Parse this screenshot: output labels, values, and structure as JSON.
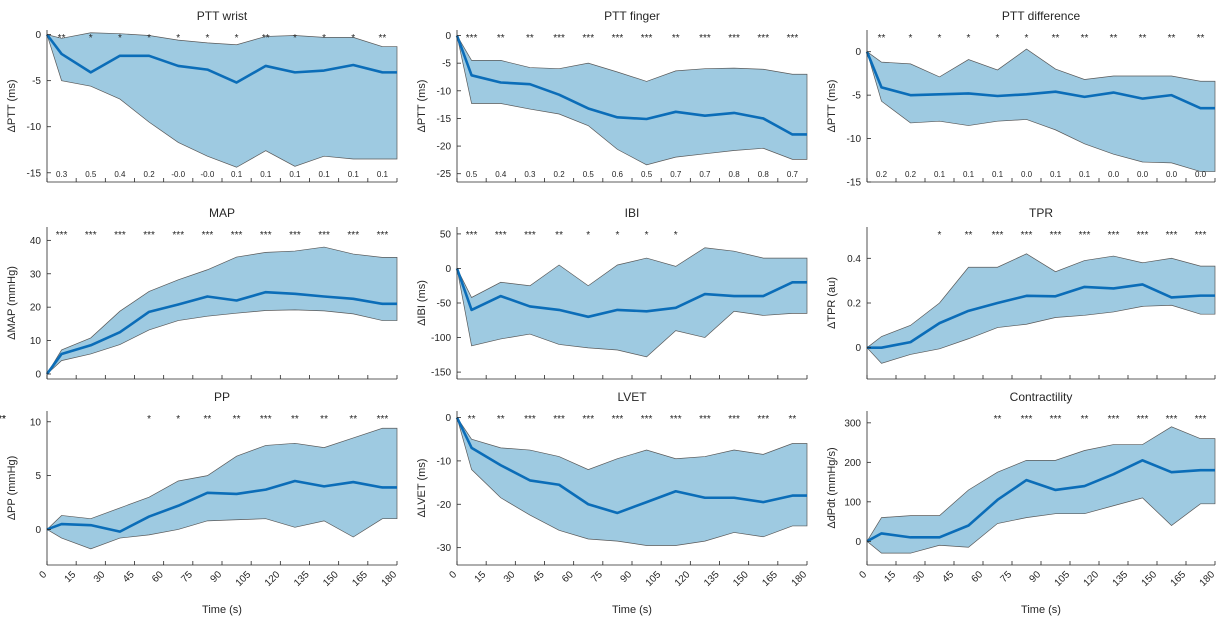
{
  "colors": {
    "band": "#9ecae1",
    "band_edge": "#595959",
    "line": "#0b6db8",
    "axis": "#262626"
  },
  "chart_data": [
    {
      "type": "area",
      "title": "PTT wrist",
      "ylabel": "ΔPTT (ms)",
      "xlabel": "",
      "x": [
        0,
        7.5,
        22.5,
        37.5,
        52.5,
        67.5,
        82.5,
        97.5,
        112.5,
        127.5,
        142.5,
        157.5,
        172.5,
        180
      ],
      "xlim": [
        0,
        180
      ],
      "ylim": [
        -16,
        0.5
      ],
      "yticks": [
        0,
        -5,
        -10,
        -15
      ],
      "series": [
        {
          "mean": [
            0,
            -2.1,
            -4.1,
            -2.3,
            -2.3,
            -3.4,
            -3.8,
            -5.2,
            -3.4,
            -4.1,
            -3.9,
            -3.3,
            -4.1,
            -4.1
          ],
          "upper": [
            0,
            -0.4,
            0.2,
            0.1,
            -0.1,
            -0.6,
            -0.9,
            -1.1,
            -0.2,
            -0.1,
            -0.3,
            -0.3,
            -1.3,
            -1.3
          ],
          "lower": [
            0,
            -5.0,
            -5.6,
            -7.0,
            -9.5,
            -11.7,
            -13.2,
            -14.4,
            -12.6,
            -14.3,
            -13.2,
            -13.5,
            -13.5,
            -13.5
          ]
        }
      ],
      "stars": [
        "**",
        "*",
        "*",
        "*",
        "*",
        "*",
        "*",
        "**",
        "*",
        "*",
        "*",
        "**"
      ],
      "stars_x": [
        22.5,
        37.5,
        52.5,
        67.5,
        82.5,
        97.5,
        112.5,
        127.5,
        142.5,
        157.5,
        172.5
      ],
      "stars_x_full": [
        7.5,
        37.5,
        52.5,
        67.5,
        82.5,
        97.5,
        112.5,
        127.5,
        142.5,
        157.5,
        172.5,
        172.5
      ],
      "annotations": [
        "0.3",
        "0.5",
        "0.4",
        "0.2",
        "-0.0",
        "-0.0",
        "0.1",
        "0.1",
        "0.1",
        "0.1",
        "0.1",
        "0.1"
      ]
    },
    {
      "type": "area",
      "title": "PTT finger",
      "ylabel": "ΔPTT (ms)",
      "xlabel": "",
      "x": [
        0,
        7.5,
        22.5,
        37.5,
        52.5,
        67.5,
        82.5,
        97.5,
        112.5,
        127.5,
        142.5,
        157.5,
        172.5,
        180
      ],
      "xlim": [
        0,
        180
      ],
      "ylim": [
        -26.5,
        1
      ],
      "yticks": [
        0,
        -5,
        -10,
        -15,
        -20,
        -25
      ],
      "series": [
        {
          "mean": [
            0,
            -7.2,
            -8.5,
            -8.8,
            -10.7,
            -13.2,
            -14.8,
            -15.1,
            -13.8,
            -14.5,
            -14.0,
            -15.0,
            -17.9,
            -17.9
          ],
          "upper": [
            0,
            -4.5,
            -4.5,
            -5.8,
            -6.0,
            -5.0,
            -6.6,
            -8.3,
            -6.4,
            -6.0,
            -5.9,
            -6.1,
            -7.0,
            -7.0
          ],
          "lower": [
            0,
            -12.3,
            -12.3,
            -13.3,
            -14.2,
            -16.3,
            -20.6,
            -23.4,
            -22.0,
            -21.4,
            -20.8,
            -20.4,
            -22.4,
            -22.4
          ]
        }
      ],
      "stars": [
        "***",
        "**",
        "**",
        "***",
        "***",
        "***",
        "***",
        "**",
        "***",
        "***",
        "***",
        "***"
      ],
      "annotations": [
        "0.5",
        "0.4",
        "0.3",
        "0.2",
        "0.5",
        "0.6",
        "0.5",
        "0.7",
        "0.7",
        "0.8",
        "0.8",
        "0.7"
      ]
    },
    {
      "type": "area",
      "title": "PTT difference",
      "ylabel": "ΔPTT (ms)",
      "xlabel": "",
      "x": [
        0,
        7.5,
        22.5,
        37.5,
        52.5,
        67.5,
        82.5,
        97.5,
        112.5,
        127.5,
        142.5,
        157.5,
        172.5,
        180
      ],
      "xlim": [
        0,
        180
      ],
      "ylim": [
        -15,
        2.5
      ],
      "yticks": [
        0,
        -5,
        -10,
        -15
      ],
      "series": [
        {
          "mean": [
            0,
            -4.1,
            -5.0,
            -4.9,
            -4.8,
            -5.1,
            -4.9,
            -4.6,
            -5.2,
            -4.7,
            -5.4,
            -5.0,
            -6.5,
            -6.5
          ],
          "upper": [
            0,
            -1.2,
            -1.4,
            -2.9,
            -0.9,
            -2.1,
            0.3,
            -2.0,
            -3.2,
            -2.8,
            -2.8,
            -2.8,
            -3.4,
            -3.4
          ],
          "lower": [
            0,
            -5.7,
            -8.2,
            -8.0,
            -8.5,
            -8.0,
            -7.8,
            -9.0,
            -10.6,
            -11.8,
            -12.7,
            -12.8,
            -13.8,
            -13.8
          ]
        }
      ],
      "stars": [
        "**",
        "*",
        "*",
        "*",
        "*",
        "*",
        "**",
        "**",
        "**",
        "**",
        "**",
        "**"
      ],
      "annotations": [
        "0.2",
        "0.2",
        "0.1",
        "0.1",
        "0.1",
        "0.0",
        "0.1",
        "0.1",
        "0.0",
        "0.0",
        "0.0",
        "0.0"
      ]
    },
    {
      "type": "area",
      "title": "MAP",
      "ylabel": "ΔMAP (mmHg)",
      "xlabel": "",
      "x": [
        0,
        7.5,
        22.5,
        37.5,
        52.5,
        67.5,
        82.5,
        97.5,
        112.5,
        127.5,
        142.5,
        157.5,
        172.5,
        180
      ],
      "xlim": [
        0,
        180
      ],
      "ylim": [
        -1.5,
        44
      ],
      "yticks": [
        0,
        10,
        20,
        30,
        40
      ],
      "series": [
        {
          "mean": [
            0,
            6.0,
            8.6,
            12.5,
            18.6,
            20.8,
            23.2,
            22.0,
            24.5,
            24.0,
            23.2,
            22.5,
            21.0,
            21.0
          ],
          "upper": [
            0,
            7.2,
            10.8,
            18.8,
            24.7,
            28.2,
            31.2,
            35.0,
            36.4,
            36.8,
            38.0,
            35.9,
            34.9,
            34.9
          ],
          "lower": [
            0,
            4.0,
            6.0,
            8.8,
            13.2,
            16.0,
            17.3,
            18.2,
            19.0,
            19.2,
            18.9,
            18.0,
            16.0,
            16.0
          ]
        }
      ],
      "stars": [
        "***",
        "***",
        "***",
        "***",
        "***",
        "***",
        "***",
        "***",
        "***",
        "***",
        "***",
        "***"
      ],
      "annotations": []
    },
    {
      "type": "area",
      "title": "IBI",
      "ylabel": "ΔIBI (ms)",
      "xlabel": "",
      "x": [
        0,
        7.5,
        22.5,
        37.5,
        52.5,
        67.5,
        82.5,
        97.5,
        112.5,
        127.5,
        142.5,
        157.5,
        172.5,
        180
      ],
      "xlim": [
        0,
        180
      ],
      "ylim": [
        -160,
        60
      ],
      "yticks": [
        50,
        0,
        -50,
        -100,
        -150
      ],
      "series": [
        {
          "mean": [
            0,
            -60,
            -40,
            -55,
            -60,
            -70,
            -60,
            -62,
            -57,
            -37,
            -40,
            -40,
            -20,
            -20
          ],
          "upper": [
            0,
            -42,
            -20,
            -25,
            5,
            -25,
            5,
            15,
            3,
            30,
            25,
            15,
            15,
            15
          ],
          "lower": [
            0,
            -112,
            -102,
            -95,
            -110,
            -115,
            -118,
            -128,
            -90,
            -100,
            -62,
            -68,
            -65,
            -65
          ]
        }
      ],
      "stars": [
        "***",
        "***",
        "***",
        "**",
        "*",
        "*",
        "*",
        "*"
      ],
      "annotations": []
    },
    {
      "type": "area",
      "title": "TPR",
      "ylabel": "ΔTPR (au)",
      "xlabel": "",
      "x": [
        0,
        7.5,
        22.5,
        37.5,
        52.5,
        67.5,
        82.5,
        97.5,
        112.5,
        127.5,
        142.5,
        157.5,
        172.5,
        180
      ],
      "xlim": [
        0,
        180
      ],
      "ylim": [
        -0.14,
        0.54
      ],
      "yticks": [
        0,
        0.2,
        0.4
      ],
      "series": [
        {
          "mean": [
            0,
            0.0,
            0.025,
            0.11,
            0.165,
            0.2,
            0.232,
            0.23,
            0.272,
            0.265,
            0.283,
            0.225,
            0.233,
            0.233
          ],
          "upper": [
            0,
            0.05,
            0.1,
            0.2,
            0.36,
            0.36,
            0.42,
            0.34,
            0.39,
            0.41,
            0.38,
            0.4,
            0.365,
            0.365
          ],
          "lower": [
            0,
            -0.07,
            -0.03,
            -0.005,
            0.04,
            0.09,
            0.105,
            0.135,
            0.145,
            0.16,
            0.185,
            0.19,
            0.15,
            0.15
          ]
        }
      ],
      "stars": [
        "*",
        "**",
        "***",
        "***",
        "***",
        "***",
        "***",
        "***",
        "***",
        "***"
      ],
      "annotations": []
    },
    {
      "type": "area",
      "title": "PP",
      "ylabel": "ΔPP (mmHg)",
      "xlabel": "Time (s)",
      "x": [
        0,
        7.5,
        22.5,
        37.5,
        52.5,
        67.5,
        82.5,
        97.5,
        112.5,
        127.5,
        142.5,
        157.5,
        172.5,
        180
      ],
      "xlim": [
        0,
        180
      ],
      "ylim": [
        -3.3,
        11
      ],
      "yticks": [
        0,
        5,
        10
      ],
      "series": [
        {
          "mean": [
            0,
            0.5,
            0.4,
            -0.2,
            1.2,
            2.2,
            3.4,
            3.3,
            3.7,
            4.5,
            4.0,
            4.4,
            3.9,
            3.9
          ],
          "upper": [
            0,
            1.3,
            1.0,
            2.0,
            3.0,
            4.5,
            5.0,
            6.8,
            7.8,
            8.0,
            7.6,
            8.5,
            9.4,
            9.4
          ],
          "lower": [
            0,
            -0.8,
            -1.8,
            -0.8,
            -0.5,
            0.0,
            0.8,
            0.9,
            1.0,
            0.2,
            0.8,
            -0.7,
            1.0,
            1.0
          ]
        }
      ],
      "stars": [
        "*",
        "*",
        "**",
        "**",
        "***",
        "**",
        "**",
        "**",
        "***"
      ],
      "annotations": []
    },
    {
      "type": "area",
      "title": "LVET",
      "ylabel": "ΔLVET (ms)",
      "xlabel": "Time (s)",
      "x": [
        0,
        7.5,
        22.5,
        37.5,
        52.5,
        67.5,
        82.5,
        97.5,
        112.5,
        127.5,
        142.5,
        157.5,
        172.5,
        180
      ],
      "xlim": [
        0,
        180
      ],
      "ylim": [
        -34,
        1.5
      ],
      "yticks": [
        0,
        -10,
        -20,
        -30
      ],
      "series": [
        {
          "mean": [
            0,
            -7,
            -11,
            -14.5,
            -15.5,
            -20,
            -22,
            -19.5,
            -17,
            -18.5,
            -18.5,
            -19.5,
            -18,
            -18
          ],
          "upper": [
            0,
            -5,
            -7,
            -7.5,
            -9,
            -12,
            -9.5,
            -7.5,
            -9.5,
            -9,
            -7.5,
            -8.5,
            -6,
            -6
          ],
          "lower": [
            0,
            -12,
            -18.5,
            -22.5,
            -26,
            -28,
            -28.5,
            -29.5,
            -29.5,
            -28.5,
            -26.5,
            -27.5,
            -25,
            -25
          ]
        }
      ],
      "stars": [
        "**",
        "**",
        "***",
        "***",
        "***",
        "***",
        "***",
        "***",
        "***",
        "***",
        "***",
        "**"
      ],
      "annotations": []
    },
    {
      "type": "area",
      "title": "Contractility",
      "ylabel": "ΔdPdt (mmHg/s)",
      "xlabel": "Time (s)",
      "x": [
        0,
        7.5,
        22.5,
        37.5,
        52.5,
        67.5,
        82.5,
        97.5,
        112.5,
        127.5,
        142.5,
        157.5,
        172.5,
        180
      ],
      "xlim": [
        0,
        180
      ],
      "ylim": [
        -60,
        330
      ],
      "yticks": [
        0,
        100,
        200,
        300
      ],
      "series": [
        {
          "mean": [
            0,
            20,
            10,
            10,
            40,
            105,
            155,
            130,
            140,
            170,
            205,
            175,
            180,
            180
          ],
          "upper": [
            0,
            60,
            65,
            65,
            130,
            175,
            205,
            205,
            230,
            245,
            245,
            290,
            260,
            260
          ],
          "lower": [
            0,
            -30,
            -30,
            -10,
            -15,
            45,
            60,
            70,
            70,
            90,
            110,
            40,
            95,
            95
          ]
        }
      ],
      "stars": [
        "**",
        "***",
        "***",
        "**",
        "***",
        "***",
        "***",
        "***",
        "***",
        "***"
      ],
      "annotations": []
    }
  ],
  "x_ticks": [
    "0",
    "15",
    "30",
    "45",
    "60",
    "75",
    "90",
    "105",
    "120",
    "135",
    "150",
    "165",
    "180"
  ]
}
